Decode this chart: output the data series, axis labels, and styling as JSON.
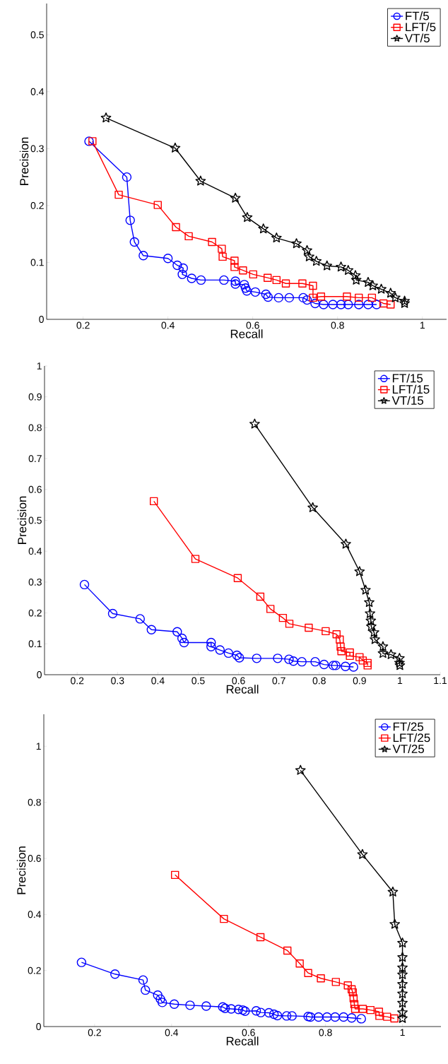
{
  "chart_data": [
    {
      "type": "line",
      "xlabel": "Recall",
      "ylabel": "Precision",
      "legend": "top right",
      "xlim": [
        0.114,
        1.057
      ],
      "ylim": [
        0,
        0.555
      ],
      "xticks": [
        0.2,
        0.4,
        0.6,
        0.8,
        1
      ],
      "yticks": [
        0,
        0.1,
        0.2,
        0.3,
        0.4,
        0.5
      ],
      "series": [
        {
          "name": "FT/5",
          "color": "#0000ff",
          "marker": "circle",
          "x": [
            0.214,
            0.303,
            0.311,
            0.321,
            0.342,
            0.4,
            0.422,
            0.436,
            0.434,
            0.456,
            0.478,
            0.532,
            0.559,
            0.559,
            0.58,
            0.583,
            0.586,
            0.606,
            0.631,
            0.636,
            0.661,
            0.686,
            0.719,
            0.728,
            0.747,
            0.767,
            0.789,
            0.808,
            0.825,
            0.85,
            0.872,
            0.892
          ],
          "values": [
            0.313,
            0.25,
            0.174,
            0.136,
            0.112,
            0.107,
            0.095,
            0.09,
            0.079,
            0.072,
            0.069,
            0.069,
            0.067,
            0.062,
            0.061,
            0.055,
            0.05,
            0.048,
            0.044,
            0.039,
            0.038,
            0.038,
            0.038,
            0.034,
            0.028,
            0.026,
            0.026,
            0.026,
            0.026,
            0.026,
            0.026,
            0.026
          ]
        },
        {
          "name": "LFT/5",
          "color": "#ff0000",
          "marker": "square",
          "x": [
            0.222,
            0.284,
            0.376,
            0.419,
            0.449,
            0.504,
            0.527,
            0.529,
            0.557,
            0.557,
            0.577,
            0.601,
            0.635,
            0.656,
            0.678,
            0.717,
            0.742,
            0.742,
            0.761,
            0.822,
            0.85,
            0.881,
            0.908,
            0.925
          ],
          "values": [
            0.313,
            0.219,
            0.201,
            0.162,
            0.146,
            0.136,
            0.124,
            0.11,
            0.103,
            0.092,
            0.086,
            0.079,
            0.073,
            0.069,
            0.063,
            0.063,
            0.059,
            0.038,
            0.04,
            0.04,
            0.038,
            0.038,
            0.028,
            0.026
          ]
        },
        {
          "name": "VT/5",
          "color": "#000000",
          "marker": "star",
          "x": [
            0.254,
            0.417,
            0.477,
            0.559,
            0.587,
            0.625,
            0.656,
            0.703,
            0.728,
            0.733,
            0.75,
            0.775,
            0.808,
            0.825,
            0.842,
            0.844,
            0.872,
            0.883,
            0.903,
            0.925,
            0.936,
            0.958,
            0.958
          ],
          "values": [
            0.354,
            0.301,
            0.243,
            0.213,
            0.179,
            0.159,
            0.143,
            0.133,
            0.121,
            0.11,
            0.102,
            0.094,
            0.092,
            0.086,
            0.077,
            0.069,
            0.065,
            0.059,
            0.053,
            0.046,
            0.038,
            0.032,
            0.028
          ]
        }
      ]
    },
    {
      "type": "line",
      "xlabel": "Recall",
      "ylabel": "Precision",
      "legend": "top right",
      "xlim": [
        0.119,
        1.1
      ],
      "ylim": [
        0,
        1
      ],
      "xticks": [
        0.2,
        0.3,
        0.4,
        0.5,
        0.6,
        0.7,
        0.8,
        0.9,
        1,
        1.1
      ],
      "yticks": [
        0,
        0.1,
        0.2,
        0.3,
        0.4,
        0.5,
        0.6,
        0.7,
        0.8,
        0.9,
        1
      ],
      "series": [
        {
          "name": "FT/15",
          "color": "#0000ff",
          "marker": "circle",
          "x": [
            0.218,
            0.288,
            0.356,
            0.384,
            0.448,
            0.46,
            0.465,
            0.532,
            0.532,
            0.554,
            0.575,
            0.596,
            0.602,
            0.645,
            0.697,
            0.725,
            0.736,
            0.757,
            0.79,
            0.812,
            0.835,
            0.841,
            0.865,
            0.885
          ],
          "values": [
            0.292,
            0.198,
            0.181,
            0.146,
            0.139,
            0.118,
            0.104,
            0.104,
            0.091,
            0.08,
            0.07,
            0.063,
            0.055,
            0.053,
            0.053,
            0.05,
            0.044,
            0.042,
            0.042,
            0.033,
            0.03,
            0.03,
            0.027,
            0.025
          ]
        },
        {
          "name": "LFT/15",
          "color": "#ff0000",
          "marker": "square",
          "x": [
            0.39,
            0.493,
            0.598,
            0.654,
            0.679,
            0.71,
            0.726,
            0.774,
            0.816,
            0.843,
            0.851,
            0.853,
            0.855,
            0.876,
            0.876,
            0.9,
            0.908,
            0.92,
            0.92
          ],
          "values": [
            0.562,
            0.375,
            0.313,
            0.253,
            0.213,
            0.184,
            0.165,
            0.152,
            0.141,
            0.131,
            0.114,
            0.091,
            0.076,
            0.072,
            0.061,
            0.057,
            0.046,
            0.038,
            0.03
          ]
        },
        {
          "name": "VT/15",
          "color": "#000000",
          "marker": "star",
          "x": [
            0.64,
            0.784,
            0.866,
            0.9,
            0.915,
            0.924,
            0.926,
            0.928,
            0.929,
            0.936,
            0.938,
            0.958,
            0.958,
            0.978,
            0.999,
            0.999,
            1.0
          ],
          "values": [
            0.812,
            0.541,
            0.423,
            0.334,
            0.274,
            0.234,
            0.198,
            0.175,
            0.156,
            0.137,
            0.114,
            0.091,
            0.069,
            0.065,
            0.053,
            0.038,
            0.03
          ]
        }
      ]
    },
    {
      "type": "line",
      "xlabel": "Recall",
      "ylabel": "Precision",
      "legend": "top right",
      "xlim": [
        0.068,
        1.1
      ],
      "ylim": [
        0,
        1.114
      ],
      "xticks": [
        0.2,
        0.4,
        0.6,
        0.8,
        1
      ],
      "yticks": [
        0,
        0.2,
        0.4,
        0.6,
        0.8,
        1
      ],
      "series": [
        {
          "name": "FT/25",
          "color": "#0000ff",
          "marker": "circle",
          "x": [
            0.166,
            0.253,
            0.326,
            0.332,
            0.364,
            0.371,
            0.376,
            0.407,
            0.448,
            0.49,
            0.533,
            0.539,
            0.555,
            0.574,
            0.585,
            0.591,
            0.62,
            0.632,
            0.653,
            0.666,
            0.675,
            0.699,
            0.713,
            0.755,
            0.761,
            0.782,
            0.804,
            0.825,
            0.847,
            0.868,
            0.893
          ],
          "values": [
            0.229,
            0.187,
            0.166,
            0.13,
            0.112,
            0.098,
            0.086,
            0.08,
            0.076,
            0.073,
            0.07,
            0.065,
            0.063,
            0.061,
            0.059,
            0.055,
            0.056,
            0.05,
            0.049,
            0.044,
            0.039,
            0.038,
            0.038,
            0.036,
            0.034,
            0.034,
            0.034,
            0.034,
            0.034,
            0.031,
            0.028
          ]
        },
        {
          "name": "LFT/25",
          "color": "#ff0000",
          "marker": "square",
          "x": [
            0.409,
            0.536,
            0.631,
            0.701,
            0.733,
            0.755,
            0.788,
            0.827,
            0.858,
            0.868,
            0.871,
            0.873,
            0.875,
            0.877,
            0.897,
            0.917,
            0.939,
            0.94,
            0.96,
            0.979
          ],
          "values": [
            0.541,
            0.384,
            0.319,
            0.271,
            0.225,
            0.191,
            0.172,
            0.159,
            0.147,
            0.133,
            0.122,
            0.101,
            0.08,
            0.063,
            0.063,
            0.059,
            0.053,
            0.038,
            0.035,
            0.029
          ]
        },
        {
          "name": "VT/25",
          "color": "#000000",
          "marker": "star",
          "x": [
            0.735,
            0.896,
            0.975,
            0.98,
            1.0,
            1.0,
            1.0,
            1.0,
            1.0,
            1.0,
            1.0,
            1.0,
            1.0
          ],
          "values": [
            0.914,
            0.614,
            0.48,
            0.365,
            0.298,
            0.247,
            0.21,
            0.185,
            0.151,
            0.117,
            0.084,
            0.05,
            0.029
          ]
        }
      ]
    }
  ]
}
